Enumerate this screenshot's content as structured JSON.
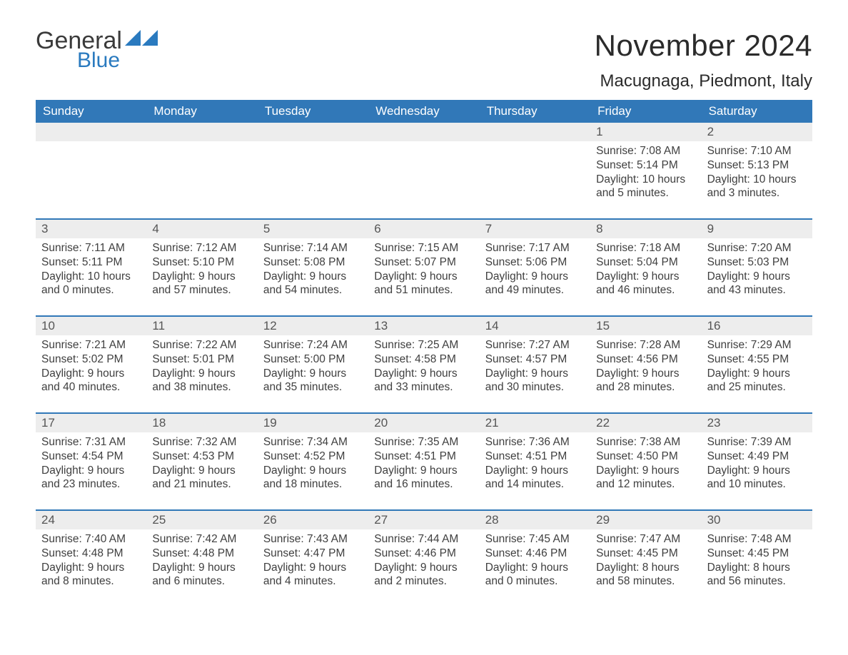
{
  "logo": {
    "word1": "General",
    "word2": "Blue"
  },
  "title": "November 2024",
  "location": "Macugnaga, Piedmont, Italy",
  "colors": {
    "header_bg": "#3178b8",
    "header_text": "#ffffff",
    "daynum_bg": "#ededed",
    "border": "#3178b8",
    "text": "#3a3a3a",
    "logo_blue": "#2a7abf"
  },
  "weekdays": [
    "Sunday",
    "Monday",
    "Tuesday",
    "Wednesday",
    "Thursday",
    "Friday",
    "Saturday"
  ],
  "weeks": [
    [
      null,
      null,
      null,
      null,
      null,
      {
        "n": "1",
        "sr": "7:08 AM",
        "ss": "5:14 PM",
        "dl": "10 hours and 5 minutes."
      },
      {
        "n": "2",
        "sr": "7:10 AM",
        "ss": "5:13 PM",
        "dl": "10 hours and 3 minutes."
      }
    ],
    [
      {
        "n": "3",
        "sr": "7:11 AM",
        "ss": "5:11 PM",
        "dl": "10 hours and 0 minutes."
      },
      {
        "n": "4",
        "sr": "7:12 AM",
        "ss": "5:10 PM",
        "dl": "9 hours and 57 minutes."
      },
      {
        "n": "5",
        "sr": "7:14 AM",
        "ss": "5:08 PM",
        "dl": "9 hours and 54 minutes."
      },
      {
        "n": "6",
        "sr": "7:15 AM",
        "ss": "5:07 PM",
        "dl": "9 hours and 51 minutes."
      },
      {
        "n": "7",
        "sr": "7:17 AM",
        "ss": "5:06 PM",
        "dl": "9 hours and 49 minutes."
      },
      {
        "n": "8",
        "sr": "7:18 AM",
        "ss": "5:04 PM",
        "dl": "9 hours and 46 minutes."
      },
      {
        "n": "9",
        "sr": "7:20 AM",
        "ss": "5:03 PM",
        "dl": "9 hours and 43 minutes."
      }
    ],
    [
      {
        "n": "10",
        "sr": "7:21 AM",
        "ss": "5:02 PM",
        "dl": "9 hours and 40 minutes."
      },
      {
        "n": "11",
        "sr": "7:22 AM",
        "ss": "5:01 PM",
        "dl": "9 hours and 38 minutes."
      },
      {
        "n": "12",
        "sr": "7:24 AM",
        "ss": "5:00 PM",
        "dl": "9 hours and 35 minutes."
      },
      {
        "n": "13",
        "sr": "7:25 AM",
        "ss": "4:58 PM",
        "dl": "9 hours and 33 minutes."
      },
      {
        "n": "14",
        "sr": "7:27 AM",
        "ss": "4:57 PM",
        "dl": "9 hours and 30 minutes."
      },
      {
        "n": "15",
        "sr": "7:28 AM",
        "ss": "4:56 PM",
        "dl": "9 hours and 28 minutes."
      },
      {
        "n": "16",
        "sr": "7:29 AM",
        "ss": "4:55 PM",
        "dl": "9 hours and 25 minutes."
      }
    ],
    [
      {
        "n": "17",
        "sr": "7:31 AM",
        "ss": "4:54 PM",
        "dl": "9 hours and 23 minutes."
      },
      {
        "n": "18",
        "sr": "7:32 AM",
        "ss": "4:53 PM",
        "dl": "9 hours and 21 minutes."
      },
      {
        "n": "19",
        "sr": "7:34 AM",
        "ss": "4:52 PM",
        "dl": "9 hours and 18 minutes."
      },
      {
        "n": "20",
        "sr": "7:35 AM",
        "ss": "4:51 PM",
        "dl": "9 hours and 16 minutes."
      },
      {
        "n": "21",
        "sr": "7:36 AM",
        "ss": "4:51 PM",
        "dl": "9 hours and 14 minutes."
      },
      {
        "n": "22",
        "sr": "7:38 AM",
        "ss": "4:50 PM",
        "dl": "9 hours and 12 minutes."
      },
      {
        "n": "23",
        "sr": "7:39 AM",
        "ss": "4:49 PM",
        "dl": "9 hours and 10 minutes."
      }
    ],
    [
      {
        "n": "24",
        "sr": "7:40 AM",
        "ss": "4:48 PM",
        "dl": "9 hours and 8 minutes."
      },
      {
        "n": "25",
        "sr": "7:42 AM",
        "ss": "4:48 PM",
        "dl": "9 hours and 6 minutes."
      },
      {
        "n": "26",
        "sr": "7:43 AM",
        "ss": "4:47 PM",
        "dl": "9 hours and 4 minutes."
      },
      {
        "n": "27",
        "sr": "7:44 AM",
        "ss": "4:46 PM",
        "dl": "9 hours and 2 minutes."
      },
      {
        "n": "28",
        "sr": "7:45 AM",
        "ss": "4:46 PM",
        "dl": "9 hours and 0 minutes."
      },
      {
        "n": "29",
        "sr": "7:47 AM",
        "ss": "4:45 PM",
        "dl": "8 hours and 58 minutes."
      },
      {
        "n": "30",
        "sr": "7:48 AM",
        "ss": "4:45 PM",
        "dl": "8 hours and 56 minutes."
      }
    ]
  ],
  "labels": {
    "sunrise": "Sunrise: ",
    "sunset": "Sunset: ",
    "daylight": "Daylight: "
  }
}
